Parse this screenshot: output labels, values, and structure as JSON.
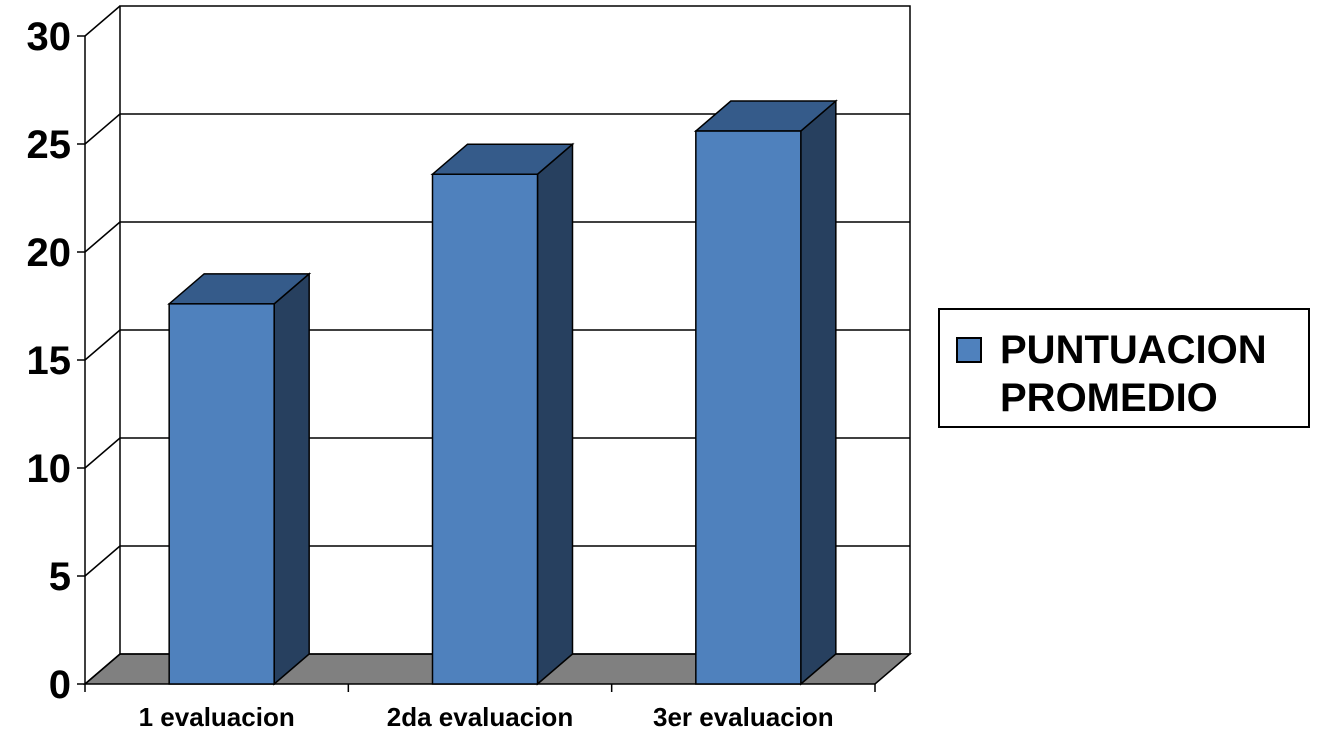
{
  "chart_data": {
    "type": "bar",
    "three_d": true,
    "categories": [
      "1 evaluacion",
      "2da evaluacion",
      "3er evaluacion"
    ],
    "series": [
      {
        "name": "PUNTUACION PROMEDIO",
        "values": [
          17.6,
          23.6,
          25.6
        ]
      }
    ],
    "y_ticks": [
      "0",
      "5",
      "10",
      "15",
      "20",
      "25",
      "30"
    ],
    "ylim": [
      0,
      30
    ],
    "grid": true,
    "legend": {
      "position": "right",
      "lines": [
        "PUNTUACION",
        "PROMEDIO"
      ]
    },
    "colors": {
      "bar_front": "#4f81bd",
      "bar_side": "#27405f",
      "bar_top": "#355b8a",
      "floor": "#808080"
    }
  }
}
